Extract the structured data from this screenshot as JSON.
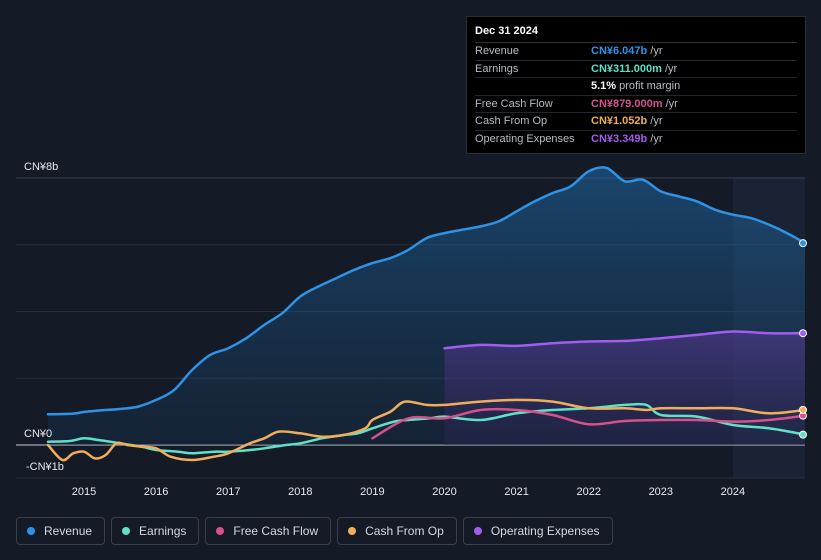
{
  "tooltip": {
    "date": "Dec 31 2024",
    "rows": [
      {
        "label": "Revenue",
        "value": "CN¥6.047b",
        "unit": "/yr",
        "color": "#2e93e6"
      },
      {
        "label": "Earnings",
        "value": "CN¥311.000m",
        "unit": "/yr",
        "color": "#5fe0c8"
      },
      {
        "label": "",
        "value": "5.1%",
        "unit": "profit margin",
        "color": "#ffffff"
      },
      {
        "label": "Free Cash Flow",
        "value": "CN¥879.000m",
        "unit": "/yr",
        "color": "#d6518a"
      },
      {
        "label": "Cash From Op",
        "value": "CN¥1.052b",
        "unit": "/yr",
        "color": "#f0ae5c"
      },
      {
        "label": "Operating Expenses",
        "value": "CN¥3.349b",
        "unit": "/yr",
        "color": "#a35cf0"
      }
    ]
  },
  "legend": [
    {
      "label": "Revenue",
      "color": "#2e93e6"
    },
    {
      "label": "Earnings",
      "color": "#5fe0c8"
    },
    {
      "label": "Free Cash Flow",
      "color": "#d6518a"
    },
    {
      "label": "Cash From Op",
      "color": "#f0ae5c"
    },
    {
      "label": "Operating Expenses",
      "color": "#a35cf0"
    }
  ],
  "chart_data": {
    "type": "area",
    "title": "",
    "xlabel": "",
    "ylabel": "",
    "y_unit": "CN¥ billions",
    "ylim": [
      -1,
      8
    ],
    "xlim": [
      2014.5,
      2025.0
    ],
    "y_tick_labels": [
      {
        "value": 8,
        "label": "CN¥8b"
      },
      {
        "value": 0,
        "label": "CN¥0"
      },
      {
        "value": -1,
        "label": "-CN¥1b"
      }
    ],
    "x_ticks": [
      2015,
      2016,
      2017,
      2018,
      2019,
      2020,
      2021,
      2022,
      2023,
      2024
    ],
    "x_tick_labels": [
      "2015",
      "2016",
      "2017",
      "2018",
      "2019",
      "2020",
      "2021",
      "2022",
      "2023",
      "2024"
    ],
    "gridlines": [
      2,
      4,
      6
    ],
    "highlight_start": 2024.0,
    "series": [
      {
        "name": "Revenue",
        "color": "#2e93e6",
        "fill": true,
        "x": [
          2014.5,
          2014.85,
          2015.0,
          2015.25,
          2015.5,
          2015.75,
          2016.0,
          2016.25,
          2016.5,
          2016.75,
          2017.0,
          2017.25,
          2017.5,
          2017.75,
          2018.0,
          2018.25,
          2018.5,
          2018.75,
          2019.0,
          2019.25,
          2019.5,
          2019.75,
          2020.0,
          2020.25,
          2020.5,
          2020.75,
          2021.0,
          2021.25,
          2021.5,
          2021.75,
          2022.0,
          2022.25,
          2022.5,
          2022.75,
          2023.0,
          2023.25,
          2023.5,
          2023.75,
          2024.0,
          2024.25,
          2024.5,
          2024.75,
          2025.0
        ],
        "values": [
          0.92,
          0.94,
          0.99,
          1.04,
          1.08,
          1.15,
          1.35,
          1.65,
          2.25,
          2.7,
          2.9,
          3.2,
          3.6,
          3.95,
          4.45,
          4.75,
          5.0,
          5.25,
          5.45,
          5.6,
          5.85,
          6.2,
          6.35,
          6.45,
          6.55,
          6.7,
          7.0,
          7.3,
          7.55,
          7.75,
          8.2,
          8.3,
          7.9,
          7.95,
          7.6,
          7.45,
          7.3,
          7.05,
          6.9,
          6.8,
          6.6,
          6.35,
          6.047
        ]
      },
      {
        "name": "Earnings",
        "color": "#5fe0c8",
        "fill": false,
        "x": [
          2014.5,
          2014.8,
          2015.0,
          2015.2,
          2015.5,
          2015.8,
          2016.0,
          2016.3,
          2016.5,
          2016.8,
          2017.0,
          2017.3,
          2017.5,
          2017.8,
          2018.0,
          2018.3,
          2018.6,
          2018.8,
          2019.0,
          2019.3,
          2019.5,
          2019.8,
          2020.0,
          2020.5,
          2021.0,
          2021.5,
          2022.0,
          2022.5,
          2022.8,
          2023.0,
          2023.5,
          2024.0,
          2024.5,
          2025.0
        ],
        "values": [
          0.1,
          0.12,
          0.2,
          0.15,
          0.05,
          -0.05,
          -0.15,
          -0.2,
          -0.25,
          -0.2,
          -0.2,
          -0.15,
          -0.1,
          0.0,
          0.05,
          0.2,
          0.3,
          0.35,
          0.5,
          0.7,
          0.75,
          0.8,
          0.85,
          0.75,
          0.95,
          1.05,
          1.1,
          1.2,
          1.2,
          0.9,
          0.85,
          0.6,
          0.5,
          0.311
        ]
      },
      {
        "name": "Free Cash Flow",
        "color": "#d6518a",
        "fill": false,
        "x": [
          2019.0,
          2019.5,
          2020.0,
          2020.5,
          2021.0,
          2021.5,
          2022.0,
          2022.5,
          2023.0,
          2023.5,
          2024.0,
          2024.5,
          2025.0
        ],
        "values": [
          0.2,
          0.8,
          0.8,
          1.05,
          1.05,
          0.9,
          0.62,
          0.72,
          0.75,
          0.75,
          0.7,
          0.75,
          0.879
        ]
      },
      {
        "name": "Cash From Op",
        "color": "#f0ae5c",
        "fill": false,
        "x": [
          2014.5,
          2014.7,
          2014.85,
          2015.0,
          2015.15,
          2015.3,
          2015.45,
          2015.6,
          2015.8,
          2016.0,
          2016.2,
          2016.5,
          2016.8,
          2017.0,
          2017.3,
          2017.5,
          2017.7,
          2018.0,
          2018.3,
          2018.6,
          2018.9,
          2019.0,
          2019.25,
          2019.45,
          2019.75,
          2020.0,
          2020.5,
          2021.0,
          2021.5,
          2022.0,
          2022.5,
          2022.8,
          2023.0,
          2023.5,
          2024.0,
          2024.5,
          2025.0
        ],
        "values": [
          0.0,
          -0.45,
          -0.25,
          -0.2,
          -0.4,
          -0.3,
          0.05,
          0.0,
          -0.05,
          -0.1,
          -0.35,
          -0.45,
          -0.35,
          -0.25,
          0.05,
          0.2,
          0.4,
          0.35,
          0.25,
          0.3,
          0.5,
          0.75,
          1.0,
          1.3,
          1.2,
          1.2,
          1.3,
          1.35,
          1.3,
          1.1,
          1.1,
          1.05,
          1.1,
          1.1,
          1.1,
          0.95,
          1.052
        ]
      },
      {
        "name": "Operating Expenses",
        "color": "#a35cf0",
        "fill": true,
        "x": [
          2020.0,
          2020.5,
          2021.0,
          2021.5,
          2022.0,
          2022.5,
          2023.0,
          2023.5,
          2024.0,
          2024.5,
          2025.0
        ],
        "values": [
          2.9,
          3.0,
          2.97,
          3.05,
          3.1,
          3.12,
          3.2,
          3.3,
          3.4,
          3.35,
          3.349
        ]
      }
    ]
  }
}
